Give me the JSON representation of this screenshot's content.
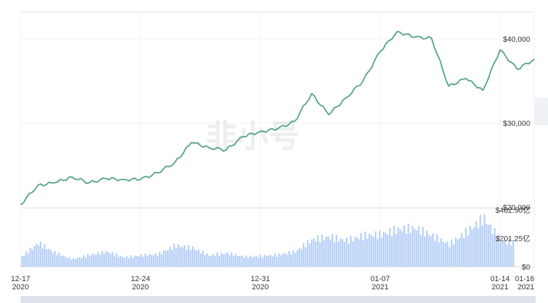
{
  "watermark": "非小号",
  "chart_data": [
    {
      "type": "line",
      "title": "",
      "xlabel": "",
      "ylabel": "",
      "x_ticks": [
        {
          "date": "2020-12-17",
          "label": "12-17",
          "year": "2020"
        },
        {
          "date": "2020-12-24",
          "label": "12-24",
          "year": "2020"
        },
        {
          "date": "2020-12-31",
          "label": "12-31",
          "year": "2020"
        },
        {
          "date": "2021-01-07",
          "label": "01-07",
          "year": "2021"
        },
        {
          "date": "2021-01-14",
          "label": "01-14",
          "year": "2021"
        },
        {
          "date": "2021-01-16",
          "label": "01-16",
          "year": "2021"
        }
      ],
      "y_ticks": [
        "$40,000",
        "$30,000",
        "$20,000"
      ],
      "ylim": [
        20000,
        40000
      ],
      "xlim": [
        "2020-12-17",
        "2021-01-16"
      ],
      "line_color": "#5aa887",
      "series": [
        {
          "x": [
            "2020-12-17",
            "2020-12-18",
            "2020-12-19",
            "2020-12-20",
            "2020-12-21",
            "2020-12-22",
            "2020-12-23",
            "2020-12-24",
            "2020-12-25",
            "2020-12-26",
            "2020-12-27",
            "2020-12-28",
            "2020-12-29",
            "2020-12-30",
            "2020-12-31",
            "2021-01-01",
            "2021-01-02",
            "2021-01-03",
            "2021-01-04",
            "2021-01-05",
            "2021-01-06",
            "2021-01-07",
            "2021-01-08",
            "2021-01-09",
            "2021-01-10",
            "2021-01-11",
            "2021-01-12",
            "2021-01-13",
            "2021-01-14",
            "2021-01-15",
            "2021-01-16"
          ],
          "values": [
            20300,
            22600,
            22900,
            23600,
            22900,
            23400,
            23300,
            23300,
            24100,
            25300,
            27700,
            27100,
            26800,
            28400,
            29000,
            29300,
            30200,
            33500,
            31000,
            33000,
            35000,
            38500,
            40900,
            40200,
            40100,
            34400,
            35300,
            33900,
            38700,
            36400,
            37600
          ]
        }
      ]
    },
    {
      "type": "bar",
      "title": "",
      "xlabel": "",
      "ylabel": "",
      "y_ticks": [
        "$402.50亿",
        "$201.25亿",
        "$0"
      ],
      "ylim": [
        0,
        402.5
      ],
      "bar_color": "#b7d1f6",
      "x": [
        "2020-12-17",
        "2020-12-18",
        "2020-12-19",
        "2020-12-20",
        "2020-12-21",
        "2020-12-22",
        "2020-12-23",
        "2020-12-24",
        "2020-12-25",
        "2020-12-26",
        "2020-12-27",
        "2020-12-28",
        "2020-12-29",
        "2020-12-30",
        "2020-12-31",
        "2021-01-01",
        "2021-01-02",
        "2021-01-03",
        "2021-01-04",
        "2021-01-05",
        "2021-01-06",
        "2021-01-07",
        "2021-01-08",
        "2021-01-09",
        "2021-01-10",
        "2021-01-11",
        "2021-01-12",
        "2021-01-13",
        "2021-01-14",
        "2021-01-15",
        "2021-01-16"
      ],
      "values": [
        80,
        190,
        110,
        60,
        95,
        120,
        75,
        90,
        100,
        170,
        150,
        90,
        110,
        80,
        85,
        95,
        120,
        220,
        240,
        210,
        250,
        260,
        300,
        310,
        250,
        180,
        280,
        390,
        210,
        190,
        220
      ]
    }
  ]
}
